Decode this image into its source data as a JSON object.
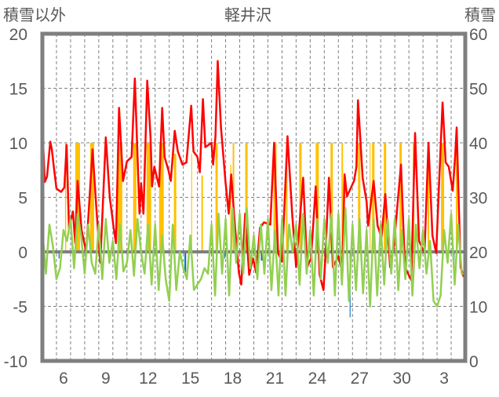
{
  "chart_data": {
    "type": "line",
    "title": "軽井沢",
    "ylabel_left": "積雪以外",
    "ylabel_right": "積雪",
    "ylim_left": [
      -10,
      20
    ],
    "ylim_right": [
      0,
      60
    ],
    "yticks_left": [
      "20",
      "15",
      "10",
      "5",
      "0",
      "-5",
      "-10"
    ],
    "yticks_left_values": [
      20,
      15,
      10,
      5,
      0,
      -5,
      -10
    ],
    "yticks_right": [
      "60",
      "50",
      "40",
      "30",
      "20",
      "10",
      "0"
    ],
    "yticks_right_values": [
      60,
      50,
      40,
      30,
      20,
      10,
      0
    ],
    "xlim_days": [
      0,
      30
    ],
    "xtick_labels": [
      "6",
      "9",
      "12",
      "15",
      "18",
      "21",
      "24",
      "27",
      "30",
      "3"
    ],
    "xtick_day_offsets": [
      1.5,
      4.5,
      7.5,
      10.5,
      13.5,
      16.5,
      19.5,
      22.5,
      25.5,
      28.5
    ],
    "grid": true,
    "colors": {
      "red": "#ff0000",
      "green": "#92d050",
      "yellow": "#ffc000",
      "blue": "#0070c0",
      "purple": "#7030a0",
      "frame": "#7f7f7f"
    },
    "series": [
      {
        "name": "red-line",
        "axis": "left",
        "type": "line",
        "points": [
          [
            0,
            11.6
          ],
          [
            0.11,
            8.3
          ],
          [
            0.17,
            6.4
          ],
          [
            0.33,
            6.9
          ],
          [
            0.56,
            10.1
          ],
          [
            0.67,
            9.4
          ],
          [
            0.83,
            7.6
          ],
          [
            1,
            5.8
          ],
          [
            1.33,
            5.5
          ],
          [
            1.56,
            5.9
          ],
          [
            1.72,
            9.8
          ],
          [
            1.89,
            2.2
          ],
          [
            2.17,
            3.7
          ],
          [
            2.33,
            0.8
          ],
          [
            2.5,
            6.5
          ],
          [
            2.78,
            2.0
          ],
          [
            3.11,
            0
          ],
          [
            3.56,
            9.4
          ],
          [
            3.83,
            4
          ],
          [
            4.11,
            -1
          ],
          [
            4.5,
            10.5
          ],
          [
            4.78,
            5
          ],
          [
            5.06,
            2.2
          ],
          [
            5.22,
            0.8
          ],
          [
            5.44,
            13.2
          ],
          [
            5.72,
            6.5
          ],
          [
            6,
            8.3
          ],
          [
            6.33,
            8.7
          ],
          [
            6.56,
            15.9
          ],
          [
            6.89,
            3.5
          ],
          [
            7,
            6.3
          ],
          [
            7.17,
            3.5
          ],
          [
            7.44,
            15.7
          ],
          [
            7.67,
            10.6
          ],
          [
            7.78,
            6
          ],
          [
            7.94,
            7.8
          ],
          [
            8.28,
            6
          ],
          [
            8.5,
            13.2
          ],
          [
            8.67,
            8.7
          ],
          [
            8.94,
            7.5
          ],
          [
            9.11,
            6.5
          ],
          [
            9.39,
            11.1
          ],
          [
            9.61,
            9.2
          ],
          [
            9.94,
            8
          ],
          [
            10.22,
            8.2
          ],
          [
            10.56,
            13.4
          ],
          [
            10.72,
            9.2
          ],
          [
            11,
            8.7
          ],
          [
            11.17,
            7.3
          ],
          [
            11.39,
            14
          ],
          [
            11.56,
            9.6
          ],
          [
            12,
            10
          ],
          [
            12.11,
            8
          ],
          [
            12.28,
            10.6
          ],
          [
            12.44,
            17.5
          ],
          [
            12.67,
            11.4
          ],
          [
            13,
            6.3
          ],
          [
            13.22,
            3.5
          ],
          [
            13.39,
            7.1
          ],
          [
            13.67,
            2.2
          ],
          [
            13.94,
            -1.9
          ],
          [
            14.11,
            -3
          ],
          [
            14.39,
            3.5
          ],
          [
            14.67,
            -2.1
          ],
          [
            14.94,
            -0.6
          ],
          [
            15.17,
            -1.9
          ],
          [
            15.44,
            2.2
          ],
          [
            15.72,
            2.7
          ],
          [
            16.17,
            2.5
          ],
          [
            16.44,
            10
          ],
          [
            16.72,
            -0.1
          ],
          [
            17,
            -0.9
          ],
          [
            17.39,
            10.6
          ],
          [
            17.72,
            3.5
          ],
          [
            18,
            -1.4
          ],
          [
            18.5,
            6.8
          ],
          [
            18.78,
            -1.4
          ],
          [
            19.06,
            -0.6
          ],
          [
            19.39,
            6
          ],
          [
            19.67,
            -2.1
          ],
          [
            19.94,
            -3.5
          ],
          [
            20.06,
            -0.9
          ],
          [
            20.33,
            6.8
          ],
          [
            20.61,
            -1.4
          ],
          [
            21,
            -0.4
          ],
          [
            21.28,
            -1.9
          ],
          [
            21.44,
            7.1
          ],
          [
            21.61,
            5.1
          ],
          [
            22.11,
            6.5
          ],
          [
            22.28,
            7.8
          ],
          [
            22.39,
            13.9
          ],
          [
            22.72,
            6.8
          ],
          [
            23,
            4.6
          ],
          [
            23.11,
            2.4
          ],
          [
            23.5,
            6.5
          ],
          [
            23.78,
            2.4
          ],
          [
            24.06,
            1.3
          ],
          [
            24.33,
            5.3
          ],
          [
            24.67,
            -1.4
          ],
          [
            24.94,
            0.6
          ],
          [
            25.44,
            8
          ],
          [
            25.72,
            -1.4
          ],
          [
            26.17,
            -2.6
          ],
          [
            26.44,
            10.9
          ],
          [
            26.72,
            1
          ],
          [
            27.11,
            -0.1
          ],
          [
            27.39,
            10
          ],
          [
            27.67,
            1.5
          ],
          [
            27.94,
            -0.1
          ],
          [
            28.11,
            5.3
          ],
          [
            28.39,
            13.7
          ],
          [
            28.61,
            8.2
          ],
          [
            28.83,
            7.8
          ],
          [
            29.11,
            5.6
          ],
          [
            29.28,
            8.7
          ],
          [
            29.39,
            11.4
          ],
          [
            29.56,
            3.5
          ],
          [
            29.67,
            -1.4
          ],
          [
            29.89,
            -2.3
          ]
        ]
      },
      {
        "name": "green-line",
        "axis": "left",
        "type": "line",
        "step_days": 0.25,
        "values": [
          2,
          -2,
          2.5,
          0.5,
          -2.5,
          -1.5,
          2,
          1,
          3,
          -1.5,
          3.5,
          1.5,
          -2,
          2.5,
          -1,
          -2,
          2.5,
          -2.5,
          3,
          -1,
          1,
          -2.5,
          2.5,
          -1.8,
          -1,
          2,
          -2.2,
          3,
          0,
          -2,
          2.5,
          -3,
          2.5,
          -3.5,
          1.5,
          -2.5,
          -4.5,
          2.5,
          -3.5,
          0,
          -1.5,
          -2.5,
          1.5,
          -3.5,
          -3,
          -2.5,
          -1.5,
          -2,
          2.5,
          -4,
          3.5,
          -2,
          3,
          -4,
          4,
          -1,
          3.5,
          -2,
          4,
          -1.5,
          1.5,
          -2.5,
          2.5,
          -2,
          3,
          -3.5,
          2,
          -4,
          3,
          -4,
          2.5,
          0,
          2.5,
          -3,
          3.5,
          -2,
          2,
          -4,
          3,
          -2.5,
          3,
          -1,
          3.5,
          -4,
          3.5,
          -3,
          4,
          -4.5,
          2.5,
          -3.5,
          3,
          -3.8,
          2,
          -5,
          3,
          -4,
          2.5,
          -3,
          3,
          -2,
          3,
          -3.5,
          2,
          -2.5,
          3,
          -4,
          2.5,
          -1.5,
          2,
          -2,
          1,
          -4.5,
          -5,
          -4,
          2,
          -1,
          3.5,
          -3,
          2.5,
          -2,
          -2
        ]
      },
      {
        "name": "yellow-bars",
        "axis": "left",
        "type": "bar",
        "bars": [
          [
            1.61,
            1.69,
            10
          ],
          [
            2.33,
            2.67,
            10
          ],
          [
            3.39,
            3.67,
            10
          ],
          [
            5.33,
            5.67,
            10
          ],
          [
            6.44,
            6.67,
            10
          ],
          [
            7.39,
            7.72,
            10
          ],
          [
            8.28,
            8.61,
            10
          ],
          [
            9.33,
            9.5,
            9
          ],
          [
            10.56,
            10.62,
            9
          ],
          [
            11.28,
            11.39,
            7
          ],
          [
            12.28,
            12.44,
            10
          ],
          [
            13.33,
            13.4,
            8
          ],
          [
            13.5,
            13.61,
            10
          ],
          [
            14.39,
            14.56,
            10
          ],
          [
            16.39,
            16.61,
            10
          ],
          [
            17.28,
            17.39,
            10
          ],
          [
            18.22,
            18.39,
            10
          ],
          [
            19.39,
            19.61,
            10
          ],
          [
            20.44,
            20.61,
            10
          ],
          [
            21.22,
            21.33,
            10
          ],
          [
            22.39,
            22.56,
            10
          ],
          [
            23.22,
            23.28,
            10
          ],
          [
            23.39,
            23.56,
            10
          ],
          [
            24.22,
            24.39,
            10
          ],
          [
            25.33,
            25.5,
            10
          ],
          [
            26.28,
            26.39,
            10
          ],
          [
            27.33,
            27.44,
            10
          ],
          [
            28.28,
            28.5,
            10
          ],
          [
            29.33,
            29.44,
            10
          ]
        ]
      },
      {
        "name": "blue-bars",
        "axis": "left",
        "type": "bar",
        "bars": [
          [
            1.15,
            1.22,
            -0.6
          ],
          [
            10.08,
            10.2,
            -1.9
          ],
          [
            12.92,
            12.98,
            -0.6
          ],
          [
            15.5,
            15.7,
            -0.8
          ],
          [
            21.8,
            21.86,
            -6
          ],
          [
            29.18,
            29.24,
            -1.5
          ]
        ]
      },
      {
        "name": "purple-line",
        "axis": "right",
        "type": "line",
        "points": [
          [
            10,
            0
          ],
          [
            30,
            0
          ]
        ]
      }
    ]
  }
}
